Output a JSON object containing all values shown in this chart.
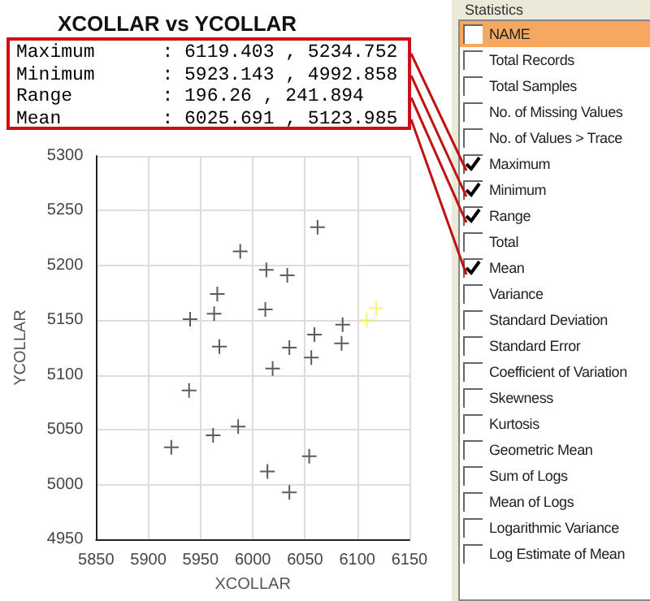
{
  "chart_data": [
    {
      "type": "scatter",
      "title": "XCOLLAR vs YCOLLAR",
      "xlabel": "XCOLLAR",
      "ylabel": "YCOLLAR",
      "annotations": [
        "Maximum      : 6119.403 , 5234.752",
        "Minimum      : 5923.143 , 4992.858",
        "Range        : 196.26 , 241.894",
        "Mean         : 6025.691 , 5123.985"
      ],
      "xlim": [
        5850,
        6150
      ],
      "xticks": [
        5850,
        5900,
        5950,
        6000,
        6050,
        6100,
        6150
      ],
      "ylim": [
        4950,
        5300
      ],
      "yticks": [
        4950,
        5000,
        5050,
        5100,
        5150,
        5200,
        5250,
        5300
      ],
      "grid": true,
      "marker": "cross",
      "series": [
        {
          "color": "#333333",
          "x": [
            6062,
            5988,
            6013,
            6033,
            5966,
            5963,
            5940,
            6012,
            6086,
            5968,
            6035,
            6059,
            6085,
            6056,
            6019,
            5939,
            5986,
            5962,
            5922,
            6054,
            6014,
            6035
          ],
          "values": [
            5235,
            5213,
            5196,
            5191,
            5174,
            5156,
            5151,
            5160,
            5146,
            5126,
            5125,
            5137,
            5129,
            5116,
            5106,
            5086,
            5053,
            5045,
            5034,
            5026,
            5012,
            4993
          ]
        },
        {
          "color": "#f2f24a",
          "x": [
            6109,
            6118
          ],
          "values": [
            5150,
            5161
          ]
        }
      ]
    },
    {
      "type": "other",
      "title": "Statistics",
      "annotations": [
        "NAME",
        "Total Records",
        "Total Samples",
        "No. of Missing Values",
        "No. of Values > Trace",
        "Maximum",
        "Minimum",
        "Range",
        "Total",
        "Mean",
        "Variance",
        "Standard Deviation",
        "Standard Error",
        "Coefficient of Variation",
        "Skewness",
        "Kurtosis",
        "Geometric Mean",
        "Sum of Logs",
        "Mean of Logs",
        "Logarithmic Variance",
        "Log Estimate of Mean"
      ]
    }
  ]
}
